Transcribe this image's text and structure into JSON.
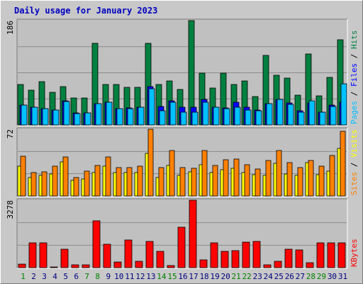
{
  "title": "Daily usage for January 2023",
  "colors": {
    "background": "#c8c8c8",
    "plot_bg": "#c0c0c0",
    "hits": "#008040",
    "files": "#0000ff",
    "pages": "#00c0ff",
    "visits": "#ffff00",
    "sites": "#ff8000",
    "kbytes": "#ff0000",
    "weekend_label": "#008000",
    "weekday_label": "#000080",
    "title": "#0000c0"
  },
  "chart_data": {
    "type": "bar",
    "x_labels": [
      "1",
      "2",
      "3",
      "4",
      "5",
      "6",
      "7",
      "8",
      "9",
      "10",
      "11",
      "12",
      "13",
      "14",
      "15",
      "16",
      "17",
      "18",
      "19",
      "20",
      "21",
      "22",
      "23",
      "24",
      "25",
      "26",
      "27",
      "28",
      "29",
      "30",
      "31"
    ],
    "weekend_days": [
      1,
      7,
      8,
      14,
      15,
      21,
      22,
      28,
      29
    ],
    "panels": [
      {
        "name": "hits-files-pages",
        "ymax_label": "186",
        "ymax": 186,
        "legend": [
          "Pages",
          "Files",
          "Hits"
        ],
        "series": [
          {
            "name": "Hits",
            "values": [
              72,
              62,
              77,
              58,
              68,
              48,
              48,
              146,
              72,
              72,
              67,
              67,
              146,
              72,
              79,
              63,
              186,
              92,
              66,
              92,
              72,
              79,
              50,
              124,
              88,
              84,
              53,
              127,
              52,
              85,
              152
            ]
          },
          {
            "name": "Files",
            "values": [
              35,
              32,
              29,
              27,
              43,
              21,
              22,
              38,
              41,
              29,
              30,
              32,
              68,
              33,
              43,
              32,
              32,
              45,
              32,
              30,
              40,
              31,
              27,
              38,
              45,
              39,
              25,
              39,
              23,
              35,
              41
            ]
          },
          {
            "name": "Pages",
            "values": [
              35,
              32,
              29,
              27,
              42,
              20,
              21,
              38,
              40,
              29,
              29,
              31,
              64,
              25,
              40,
              23,
              23,
              41,
              31,
              29,
              32,
              27,
              25,
              38,
              45,
              37,
              23,
              43,
              23,
              33,
              73
            ]
          }
        ]
      },
      {
        "name": "visits-sites",
        "ymax_label": "72",
        "ymax": 72,
        "legend": [
          "Sites",
          "Visits"
        ],
        "series": [
          {
            "name": "Visits",
            "values": [
              32,
              20,
              22,
              24,
              37,
              17,
              18,
              25,
              32,
              25,
              25,
              25,
              46,
              20,
              33,
              22,
              26,
              34,
              25,
              28,
              30,
              25,
              23,
              22,
              35,
              24,
              22,
              36,
              23,
              27,
              51
            ]
          },
          {
            "name": "Sites",
            "values": [
              43,
              25,
              26,
              32,
              42,
              20,
              27,
              33,
              42,
              31,
              31,
              32,
              72,
              31,
              49,
              31,
              30,
              49,
              33,
              39,
              40,
              34,
              29,
              38,
              49,
              36,
              31,
              38,
              32,
              44,
              70
            ]
          }
        ]
      },
      {
        "name": "kbytes",
        "ymax_label": "3278",
        "ymax": 3278,
        "legend": [
          "KBytes"
        ],
        "series": [
          {
            "name": "KBytes",
            "values": [
              180,
              1200,
              1220,
              50,
              900,
              150,
              150,
              2290,
              1150,
              280,
              1350,
              300,
              1270,
              800,
              100,
              1970,
              3278,
              370,
              1210,
              810,
              840,
              1240,
              1270,
              150,
              320,
              890,
              870,
              250,
              1210,
              1210,
              1220
            ]
          }
        ]
      }
    ]
  }
}
